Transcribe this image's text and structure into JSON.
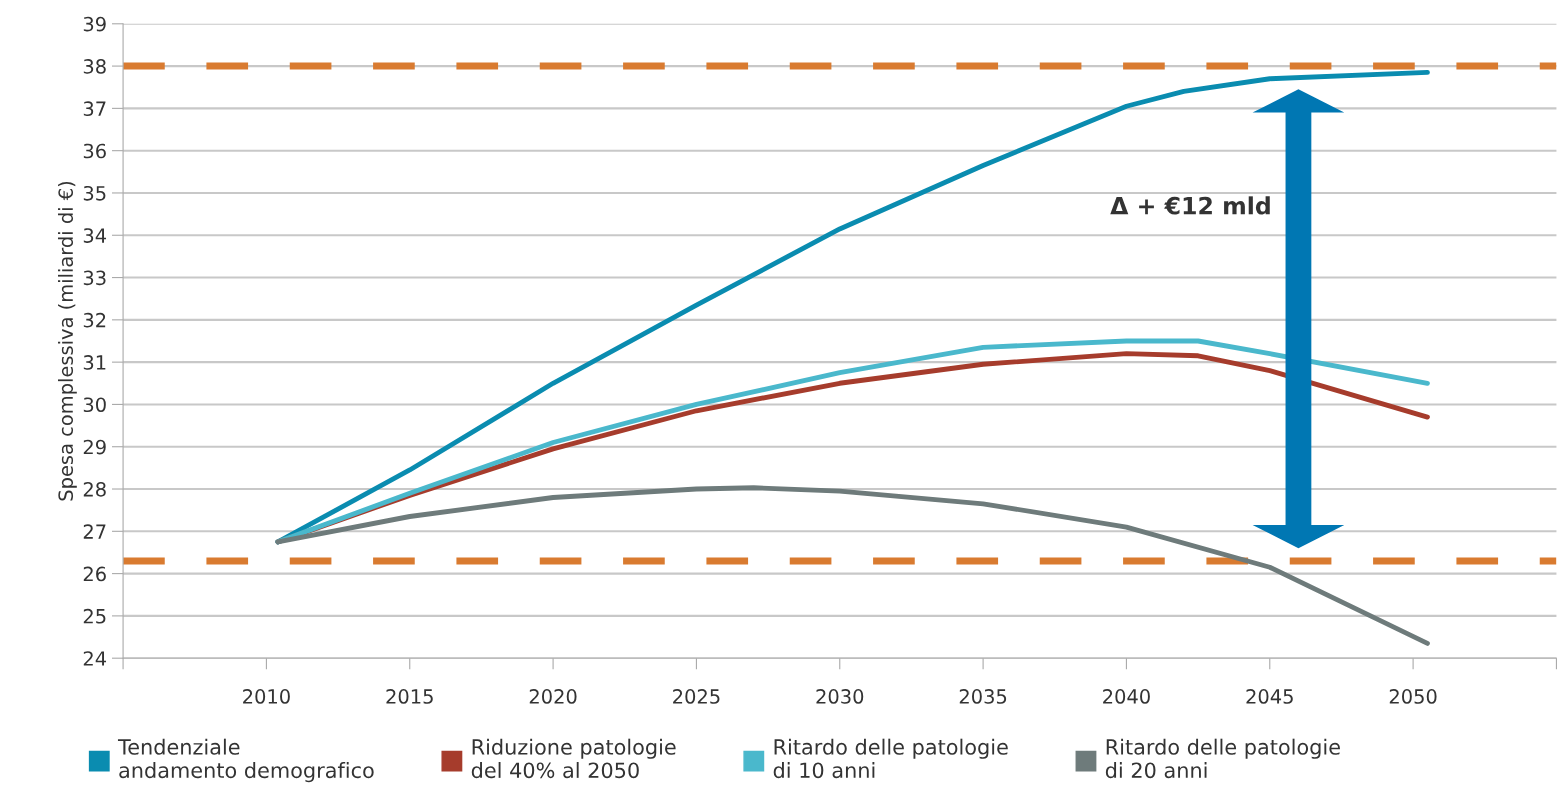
{
  "chart_data": {
    "type": "line",
    "ylabel": "Spesa complessiva (miliardi di €)",
    "xlim": [
      2005,
      2055
    ],
    "xticks": [
      {
        "value": 2005,
        "label": null
      },
      2010,
      2015,
      2020,
      2025,
      2030,
      2035,
      2040,
      2045,
      2050,
      {
        "value": 2055,
        "label": null
      }
    ],
    "ylim": [
      24,
      39
    ],
    "yticks": [
      24,
      25,
      26,
      27,
      28,
      29,
      30,
      31,
      32,
      33,
      34,
      35,
      36,
      37,
      38,
      39
    ],
    "grid": "y",
    "legend": "bottom",
    "line_style": "solid",
    "marker": "none",
    "series": [
      {
        "name": "Tendenziale\nandamento demografico",
        "color": "#0a8cb0",
        "x": [
          2010.4,
          2015,
          2020,
          2025,
          2030,
          2035,
          2040,
          2042,
          2045,
          2050.5
        ],
        "values": [
          26.75,
          28.45,
          30.5,
          32.35,
          34.15,
          35.65,
          37.05,
          37.4,
          37.7,
          37.85
        ]
      },
      {
        "name": "Riduzione patologie\ndel 40% al 2050",
        "color": "#a63c2c",
        "x": [
          2010.4,
          2015,
          2020,
          2025,
          2030,
          2035,
          2040,
          2042.5,
          2045,
          2050.5
        ],
        "values": [
          26.75,
          27.85,
          28.95,
          29.85,
          30.5,
          30.95,
          31.2,
          31.15,
          30.8,
          29.7
        ]
      },
      {
        "name": "Ritardo delle patologie\ndi 10 anni",
        "color": "#4ab8cc",
        "x": [
          2010.4,
          2015,
          2020,
          2025,
          2030,
          2035,
          2040,
          2042.5,
          2045,
          2050.5
        ],
        "values": [
          26.75,
          27.9,
          29.1,
          30.0,
          30.75,
          31.35,
          31.5,
          31.5,
          31.2,
          30.5
        ]
      },
      {
        "name": "Ritardo delle patologie\ndi 20 anni",
        "color": "#6e7b7b",
        "x": [
          2010.4,
          2015,
          2020,
          2025,
          2027,
          2030,
          2035,
          2040,
          2045,
          2050.5
        ],
        "values": [
          26.75,
          27.35,
          27.8,
          28.0,
          28.03,
          27.95,
          27.65,
          27.1,
          26.15,
          24.35
        ]
      }
    ],
    "ref_lines": [
      {
        "axis": "y",
        "value": 38,
        "label": null,
        "color": "#d97b30",
        "line_style": "dashed"
      },
      {
        "axis": "y",
        "value": 26.3,
        "label": null,
        "color": "#d97b30",
        "line_style": "dashed"
      }
    ],
    "annotations": [
      "Δ + €12 mld"
    ]
  }
}
